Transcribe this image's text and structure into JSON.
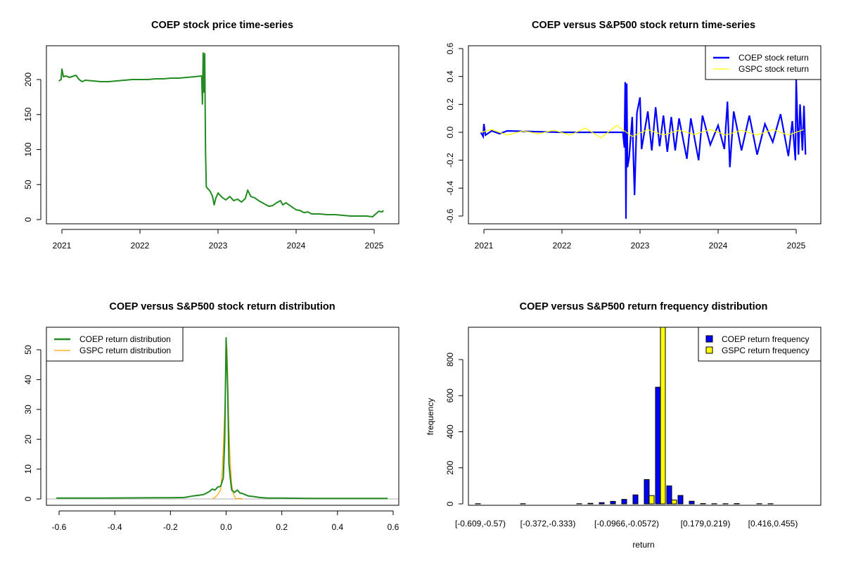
{
  "chart_data": [
    {
      "id": "price",
      "type": "line",
      "title": "COEP stock price time-series",
      "xlabel": "",
      "ylabel": "",
      "xlim": [
        2020.8,
        2025.3
      ],
      "ylim": [
        -5,
        240
      ],
      "x_ticks": [
        "2021",
        "2022",
        "2023",
        "2024",
        "2025"
      ],
      "x_tick_values": [
        2021,
        2022,
        2023,
        2024,
        2025
      ],
      "y_ticks": [
        "0",
        "50",
        "100",
        "150",
        "200"
      ],
      "y_tick_values": [
        0,
        50,
        100,
        150,
        200
      ],
      "color": "#228B22",
      "series": [
        {
          "name": "COEP",
          "x": [
            2020.96,
            2020.99,
            2021.0,
            2021.02,
            2021.05,
            2021.1,
            2021.15,
            2021.18,
            2021.22,
            2021.26,
            2021.3,
            2021.4,
            2021.5,
            2021.6,
            2021.7,
            2021.8,
            2021.9,
            2022.0,
            2022.1,
            2022.2,
            2022.3,
            2022.4,
            2022.5,
            2022.6,
            2022.7,
            2022.78,
            2022.79,
            2022.8,
            2022.81,
            2022.82,
            2022.83,
            2022.84,
            2022.85,
            2022.86,
            2022.88,
            2022.9,
            2022.93,
            2022.95,
            2022.97,
            2023.0,
            2023.05,
            2023.1,
            2023.15,
            2023.2,
            2023.25,
            2023.3,
            2023.35,
            2023.38,
            2023.42,
            2023.47,
            2023.52,
            2023.6,
            2023.65,
            2023.7,
            2023.75,
            2023.8,
            2023.83,
            2023.87,
            2023.92,
            2024.0,
            2024.05,
            2024.1,
            2024.15,
            2024.2,
            2024.3,
            2024.4,
            2024.5,
            2024.6,
            2024.7,
            2024.8,
            2024.9,
            2024.98,
            2025.02,
            2025.06,
            2025.1,
            2025.12
          ],
          "y": [
            198,
            200,
            215,
            204,
            205,
            203,
            205,
            206,
            200,
            197,
            199,
            198,
            197,
            197,
            198,
            199,
            200,
            200,
            200,
            201,
            201,
            202,
            202,
            203,
            204,
            205,
            205,
            165,
            238,
            182,
            237,
            100,
            47,
            45,
            43,
            40,
            33,
            21,
            30,
            38,
            32,
            28,
            33,
            27,
            29,
            25,
            30,
            42,
            33,
            31,
            27,
            22,
            19,
            20,
            24,
            27,
            21,
            24,
            20,
            14,
            13,
            10,
            11,
            8,
            8,
            7,
            7,
            6,
            5,
            5,
            5,
            4,
            8,
            12,
            11,
            13
          ]
        }
      ]
    },
    {
      "id": "returns",
      "type": "line",
      "title": "COEP versus S&P500 stock return time-series",
      "xlabel": "",
      "ylabel": "",
      "xlim": [
        2020.8,
        2025.3
      ],
      "ylim": [
        -0.65,
        0.62
      ],
      "x_ticks": [
        "2021",
        "2022",
        "2023",
        "2024",
        "2025"
      ],
      "x_tick_values": [
        2021,
        2022,
        2023,
        2024,
        2025
      ],
      "y_ticks": [
        "-0.6",
        "-0.4",
        "-0.2",
        "0.0",
        "0.2",
        "0.4",
        "0.6"
      ],
      "y_tick_values": [
        -0.6,
        -0.4,
        -0.2,
        0.0,
        0.2,
        0.4,
        0.6
      ],
      "legend_position": "top-right",
      "series": [
        {
          "name": "COEP stock return",
          "color": "#0000FF",
          "x": [
            2020.96,
            2020.99,
            2021.0,
            2021.02,
            2021.1,
            2021.2,
            2021.3,
            2022.0,
            2022.7,
            2022.78,
            2022.8,
            2022.81,
            2022.82,
            2022.83,
            2022.84,
            2022.86,
            2022.9,
            2022.93,
            2022.96,
            2023.0,
            2023.02,
            2023.1,
            2023.15,
            2023.2,
            2023.25,
            2023.3,
            2023.35,
            2023.4,
            2023.45,
            2023.5,
            2023.6,
            2023.65,
            2023.75,
            2023.8,
            2023.9,
            2024.0,
            2024.08,
            2024.12,
            2024.15,
            2024.2,
            2024.3,
            2024.4,
            2024.5,
            2024.6,
            2024.7,
            2024.8,
            2024.9,
            2024.95,
            2024.99,
            2025.0,
            2025.03,
            2025.05,
            2025.08,
            2025.1,
            2025.12
          ],
          "y": [
            0.0,
            -0.03,
            0.06,
            -0.02,
            0.01,
            -0.01,
            0.01,
            0.0,
            0.0,
            0.0,
            -0.11,
            0.36,
            -0.62,
            0.35,
            -0.25,
            -0.18,
            0.11,
            -0.45,
            0.14,
            0.25,
            -0.12,
            0.15,
            -0.13,
            0.18,
            -0.1,
            0.12,
            -0.14,
            0.11,
            -0.13,
            0.1,
            -0.19,
            0.1,
            -0.2,
            0.12,
            -0.09,
            0.05,
            -0.12,
            0.22,
            -0.25,
            0.15,
            -0.13,
            0.12,
            -0.16,
            0.06,
            -0.07,
            0.13,
            -0.17,
            0.08,
            -0.2,
            0.38,
            -0.16,
            0.2,
            -0.13,
            0.19,
            -0.16
          ]
        },
        {
          "name": "GSPC stock return",
          "color": "#FFFF00",
          "x": [
            2020.96,
            2021.1,
            2021.3,
            2021.5,
            2021.7,
            2021.9,
            2022.1,
            2022.3,
            2022.5,
            2022.7,
            2022.9,
            2023.1,
            2023.3,
            2023.5,
            2023.7,
            2023.9,
            2024.1,
            2024.3,
            2024.5,
            2024.7,
            2024.9,
            2025.1
          ],
          "y": [
            0.0,
            0.02,
            -0.02,
            0.01,
            -0.01,
            0.015,
            -0.02,
            0.03,
            -0.04,
            0.05,
            -0.03,
            0.02,
            -0.02,
            0.015,
            -0.015,
            0.02,
            -0.02,
            0.015,
            -0.02,
            0.02,
            -0.02,
            0.02
          ]
        }
      ]
    },
    {
      "id": "density",
      "type": "line",
      "title": "COEP versus S&P500 stock return distribution",
      "xlabel": "",
      "ylabel": "",
      "xlim": [
        -0.65,
        0.62
      ],
      "ylim": [
        -2,
        57
      ],
      "x_ticks": [
        "-0.6",
        "-0.4",
        "-0.2",
        "0.0",
        "0.2",
        "0.4",
        "0.6"
      ],
      "x_tick_values": [
        -0.6,
        -0.4,
        -0.2,
        0.0,
        0.2,
        0.4,
        0.6
      ],
      "y_ticks": [
        "0",
        "10",
        "20",
        "30",
        "40",
        "50"
      ],
      "y_tick_values": [
        0,
        10,
        20,
        30,
        40,
        50
      ],
      "legend_position": "top-left",
      "series": [
        {
          "name": "COEP return distribution",
          "color": "#228B22",
          "x": [
            -0.61,
            -0.45,
            -0.25,
            -0.2,
            -0.15,
            -0.12,
            -0.1,
            -0.08,
            -0.06,
            -0.05,
            -0.04,
            -0.03,
            -0.02,
            -0.01,
            -0.005,
            0.0,
            0.003,
            0.006,
            0.01,
            0.015,
            0.02,
            0.03,
            0.04,
            0.05,
            0.06,
            0.08,
            0.1,
            0.12,
            0.15,
            0.2,
            0.3,
            0.4,
            0.5,
            0.58
          ],
          "y": [
            0.3,
            0.3,
            0.4,
            0.4,
            0.5,
            1.0,
            1.2,
            1.5,
            2.5,
            3.3,
            3.0,
            4.0,
            4.2,
            7,
            20,
            54,
            45,
            35,
            12,
            7,
            3,
            2.2,
            3.0,
            2.0,
            1.8,
            1.0,
            0.8,
            0.5,
            0.3,
            0.3,
            0.2,
            0.2,
            0.2,
            0.2
          ]
        },
        {
          "name": "GSPC return distribution",
          "color": "#FFA500",
          "x": [
            -0.05,
            -0.04,
            -0.03,
            -0.02,
            -0.015,
            -0.01,
            -0.005,
            0.0,
            0.003,
            0.006,
            0.01,
            0.015,
            0.02,
            0.025,
            0.03,
            0.035,
            0.05,
            0.06
          ],
          "y": [
            0.0,
            0.5,
            1.5,
            3,
            8,
            17,
            30,
            46,
            51,
            40,
            24,
            12,
            5,
            2,
            0.8,
            0.1,
            0.2,
            0.0
          ]
        }
      ]
    },
    {
      "id": "histogram",
      "type": "bar",
      "title": "COEP versus S&P500 return frequency distribution",
      "xlabel": "return",
      "ylabel": "frequency",
      "ylim": [
        0,
        980
      ],
      "y_ticks": [
        "0",
        "200",
        "400",
        "600",
        "800"
      ],
      "y_tick_values": [
        0,
        200,
        400,
        600,
        800
      ],
      "x_tick_labels": [
        "[-0.609,-0.57)",
        "[-0.372,-0.333)",
        "[-0.0966,-0.0572)",
        "[0.179,0.219)",
        "[0.416,0.455)"
      ],
      "x_tick_bin_index": [
        0,
        6,
        13,
        20,
        26
      ],
      "bin_count": 30,
      "legend_position": "top-right",
      "series": [
        {
          "name": "COEP return frequency",
          "color": "#0000FF",
          "values": [
            1,
            0,
            0,
            0,
            1,
            0,
            0,
            0,
            0,
            1,
            3,
            7,
            14,
            25,
            50,
            135,
            647,
            100,
            47,
            15,
            2,
            1,
            1,
            2,
            0,
            1,
            1,
            0,
            0,
            0
          ]
        },
        {
          "name": "GSPC return frequency",
          "color": "#FFFF00",
          "values": [
            0,
            0,
            0,
            0,
            0,
            0,
            0,
            0,
            0,
            0,
            0,
            0,
            0,
            0,
            0,
            46,
            1000,
            22,
            0,
            0,
            0,
            0,
            0,
            0,
            0,
            0,
            0,
            0,
            0,
            0
          ]
        }
      ]
    }
  ]
}
